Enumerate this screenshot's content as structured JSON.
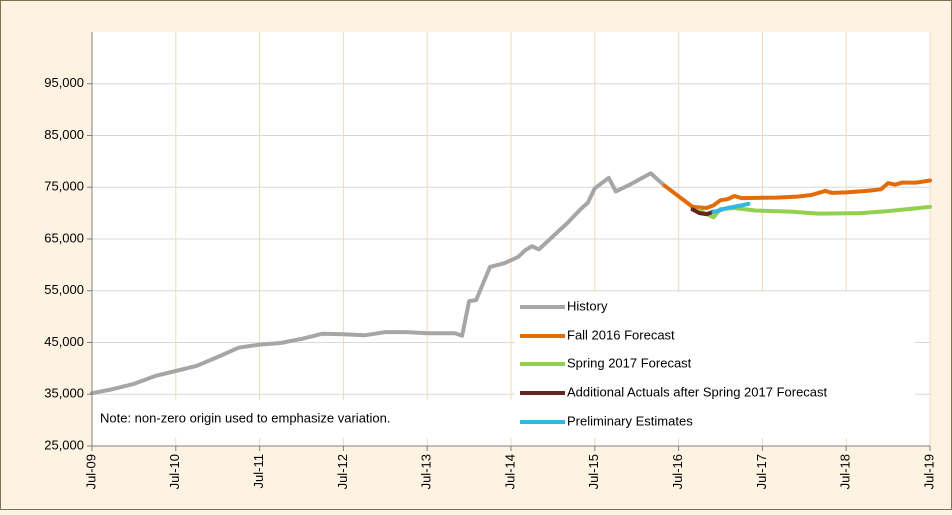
{
  "chart_data": {
    "type": "line",
    "annotation": "Note: non-zero origin used to emphasize variation.",
    "xlim": [
      "2009-07",
      "2019-07"
    ],
    "xticks": [
      {
        "value": "2009-07",
        "label": "Jul-09"
      },
      {
        "value": "2010-07",
        "label": "Jul-10"
      },
      {
        "value": "2011-07",
        "label": "Jul-11"
      },
      {
        "value": "2012-07",
        "label": "Jul-12"
      },
      {
        "value": "2013-07",
        "label": "Jul-13"
      },
      {
        "value": "2014-07",
        "label": "Jul-14"
      },
      {
        "value": "2015-07",
        "label": "Jul-15"
      },
      {
        "value": "2016-07",
        "label": "Jul-16"
      },
      {
        "value": "2017-07",
        "label": "Jul-17"
      },
      {
        "value": "2018-07",
        "label": "Jul-18"
      },
      {
        "value": "2019-07",
        "label": "Jul-19"
      }
    ],
    "ylim": [
      25000,
      105000
    ],
    "yticks": [
      {
        "value": 25000,
        "label": "25,000"
      },
      {
        "value": 35000,
        "label": "35,000"
      },
      {
        "value": 45000,
        "label": "45,000"
      },
      {
        "value": 55000,
        "label": "55,000"
      },
      {
        "value": 65000,
        "label": "65,000"
      },
      {
        "value": 75000,
        "label": "75,000"
      },
      {
        "value": 85000,
        "label": "85,000"
      },
      {
        "value": 95000,
        "label": "95,000"
      }
    ],
    "grid": true,
    "legend": "lower right",
    "series": [
      {
        "name": "History",
        "color": "#a6a6a6",
        "x": [
          "2009-07",
          "2009-10",
          "2010-01",
          "2010-04",
          "2010-07",
          "2010-10",
          "2011-01",
          "2011-04",
          "2011-07",
          "2011-10",
          "2012-01",
          "2012-04",
          "2012-07",
          "2012-10",
          "2013-01",
          "2013-04",
          "2013-07",
          "2013-11",
          "2013-12",
          "2014-01",
          "2014-02",
          "2014-04",
          "2014-06",
          "2014-08",
          "2014-09",
          "2014-10",
          "2014-11",
          "2015-01",
          "2015-03",
          "2015-05",
          "2015-06",
          "2015-07",
          "2015-09",
          "2015-10",
          "2015-12",
          "2016-03",
          "2016-05"
        ],
        "values": [
          35200,
          36000,
          37000,
          38500,
          39500,
          40500,
          42200,
          44000,
          44600,
          44900,
          45700,
          46700,
          46600,
          46400,
          47000,
          47000,
          46800,
          46800,
          46300,
          53000,
          53200,
          59600,
          60300,
          61500,
          62800,
          63600,
          63000,
          65500,
          68000,
          70800,
          72000,
          74800,
          76800,
          74200,
          75500,
          77700,
          75300
        ]
      },
      {
        "name": "Fall 2016 Forecast",
        "color": "#e36c0a",
        "x": [
          "2016-05",
          "2016-09",
          "2016-11",
          "2016-12",
          "2017-01",
          "2017-02",
          "2017-03",
          "2017-04",
          "2017-09",
          "2017-12",
          "2018-02",
          "2018-04",
          "2018-05",
          "2018-07",
          "2018-10",
          "2018-12",
          "2019-01",
          "2019-02",
          "2019-03",
          "2019-05",
          "2019-07"
        ],
        "values": [
          75300,
          71200,
          71000,
          71500,
          72500,
          72700,
          73300,
          72900,
          73000,
          73200,
          73500,
          74300,
          73900,
          74000,
          74300,
          74600,
          75800,
          75500,
          75900,
          75900,
          76300
        ]
      },
      {
        "name": "Spring 2017 Forecast",
        "color": "#92d050",
        "x": [
          "2016-10",
          "2016-12",
          "2017-01",
          "2017-03",
          "2017-06",
          "2017-11",
          "2018-03",
          "2018-09",
          "2019-01",
          "2019-07"
        ],
        "values": [
          70500,
          69200,
          70800,
          71000,
          70500,
          70300,
          69900,
          70000,
          70400,
          71200
        ]
      },
      {
        "name": "Additional Actuals after Spring 2017 Forecast",
        "color": "#632523",
        "x": [
          "2016-09",
          "2016-10",
          "2016-11",
          "2016-12"
        ],
        "values": [
          70700,
          70000,
          69800,
          70300
        ]
      },
      {
        "name": "Preliminary Estimates",
        "color": "#33b5e5",
        "x": [
          "2016-12",
          "2017-02",
          "2017-04",
          "2017-05"
        ],
        "values": [
          70200,
          71000,
          71500,
          71800
        ]
      }
    ]
  }
}
